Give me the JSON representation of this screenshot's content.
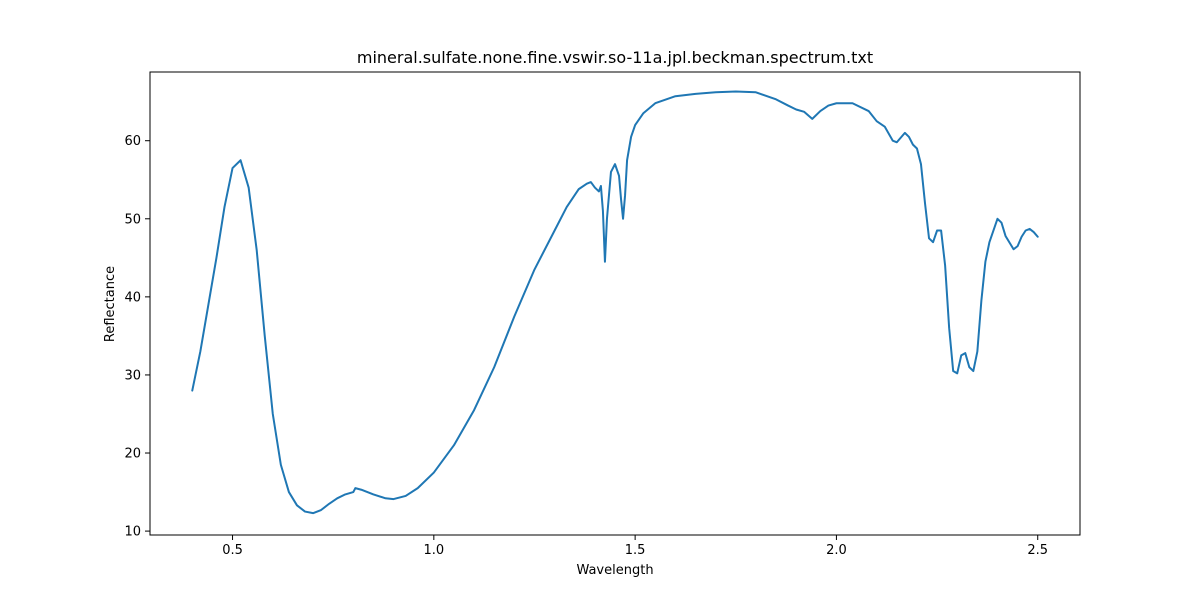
{
  "chart_data": {
    "type": "line",
    "title": "mineral.sulfate.none.fine.vswir.so-11a.jpl.beckman.spectrum.txt",
    "xlabel": "Wavelength",
    "ylabel": "Reflectance",
    "xlim": [
      0.295,
      2.605
    ],
    "ylim": [
      9.5,
      68.8
    ],
    "xticks": [
      0.5,
      1.0,
      1.5,
      2.0,
      2.5
    ],
    "xtick_labels": [
      "0.5",
      "1.0",
      "1.5",
      "2.0",
      "2.5"
    ],
    "yticks": [
      10,
      20,
      30,
      40,
      50,
      60
    ],
    "ytick_labels": [
      "10",
      "20",
      "30",
      "40",
      "50",
      "60"
    ],
    "grid": false,
    "series": [
      {
        "color": "#1f77b4",
        "x": [
          0.4,
          0.42,
          0.44,
          0.46,
          0.48,
          0.5,
          0.52,
          0.54,
          0.56,
          0.58,
          0.6,
          0.62,
          0.64,
          0.66,
          0.68,
          0.7,
          0.72,
          0.74,
          0.76,
          0.78,
          0.8,
          0.805,
          0.82,
          0.85,
          0.88,
          0.9,
          0.93,
          0.96,
          1.0,
          1.05,
          1.1,
          1.15,
          1.2,
          1.25,
          1.3,
          1.33,
          1.36,
          1.38,
          1.39,
          1.4,
          1.41,
          1.415,
          1.42,
          1.425,
          1.43,
          1.44,
          1.45,
          1.46,
          1.465,
          1.47,
          1.475,
          1.48,
          1.49,
          1.5,
          1.52,
          1.55,
          1.6,
          1.65,
          1.7,
          1.75,
          1.8,
          1.85,
          1.88,
          1.9,
          1.92,
          1.94,
          1.96,
          1.98,
          2.0,
          2.04,
          2.08,
          2.1,
          2.12,
          2.14,
          2.15,
          2.17,
          2.18,
          2.19,
          2.2,
          2.21,
          2.22,
          2.23,
          2.24,
          2.25,
          2.26,
          2.27,
          2.28,
          2.29,
          2.3,
          2.31,
          2.32,
          2.33,
          2.34,
          2.35,
          2.36,
          2.37,
          2.38,
          2.4,
          2.41,
          2.42,
          2.44,
          2.45,
          2.46,
          2.47,
          2.48,
          2.49,
          2.5
        ],
        "y": [
          28.0,
          33.0,
          39.0,
          45.0,
          51.5,
          56.5,
          57.5,
          54.0,
          46.0,
          35.0,
          25.0,
          18.5,
          15.0,
          13.3,
          12.5,
          12.3,
          12.7,
          13.5,
          14.2,
          14.7,
          15.0,
          15.5,
          15.3,
          14.7,
          14.2,
          14.1,
          14.5,
          15.5,
          17.5,
          21.0,
          25.5,
          31.0,
          37.5,
          43.5,
          48.5,
          51.5,
          53.8,
          54.5,
          54.7,
          54.0,
          53.5,
          54.2,
          51.0,
          44.5,
          50.0,
          56.0,
          57.0,
          55.5,
          52.5,
          50.0,
          53.0,
          57.5,
          60.5,
          62.0,
          63.5,
          64.8,
          65.7,
          66.0,
          66.2,
          66.3,
          66.2,
          65.3,
          64.5,
          64.0,
          63.7,
          62.8,
          63.8,
          64.5,
          64.8,
          64.8,
          63.8,
          62.5,
          61.8,
          60.0,
          59.8,
          61.0,
          60.5,
          59.5,
          59.0,
          57.0,
          52.0,
          47.5,
          47.0,
          48.5,
          48.5,
          44.0,
          36.0,
          30.5,
          30.2,
          32.5,
          32.8,
          31.0,
          30.5,
          33.0,
          39.5,
          44.5,
          47.0,
          50.0,
          49.5,
          47.8,
          46.1,
          46.5,
          47.7,
          48.5,
          48.7,
          48.3,
          47.7
        ]
      }
    ]
  }
}
